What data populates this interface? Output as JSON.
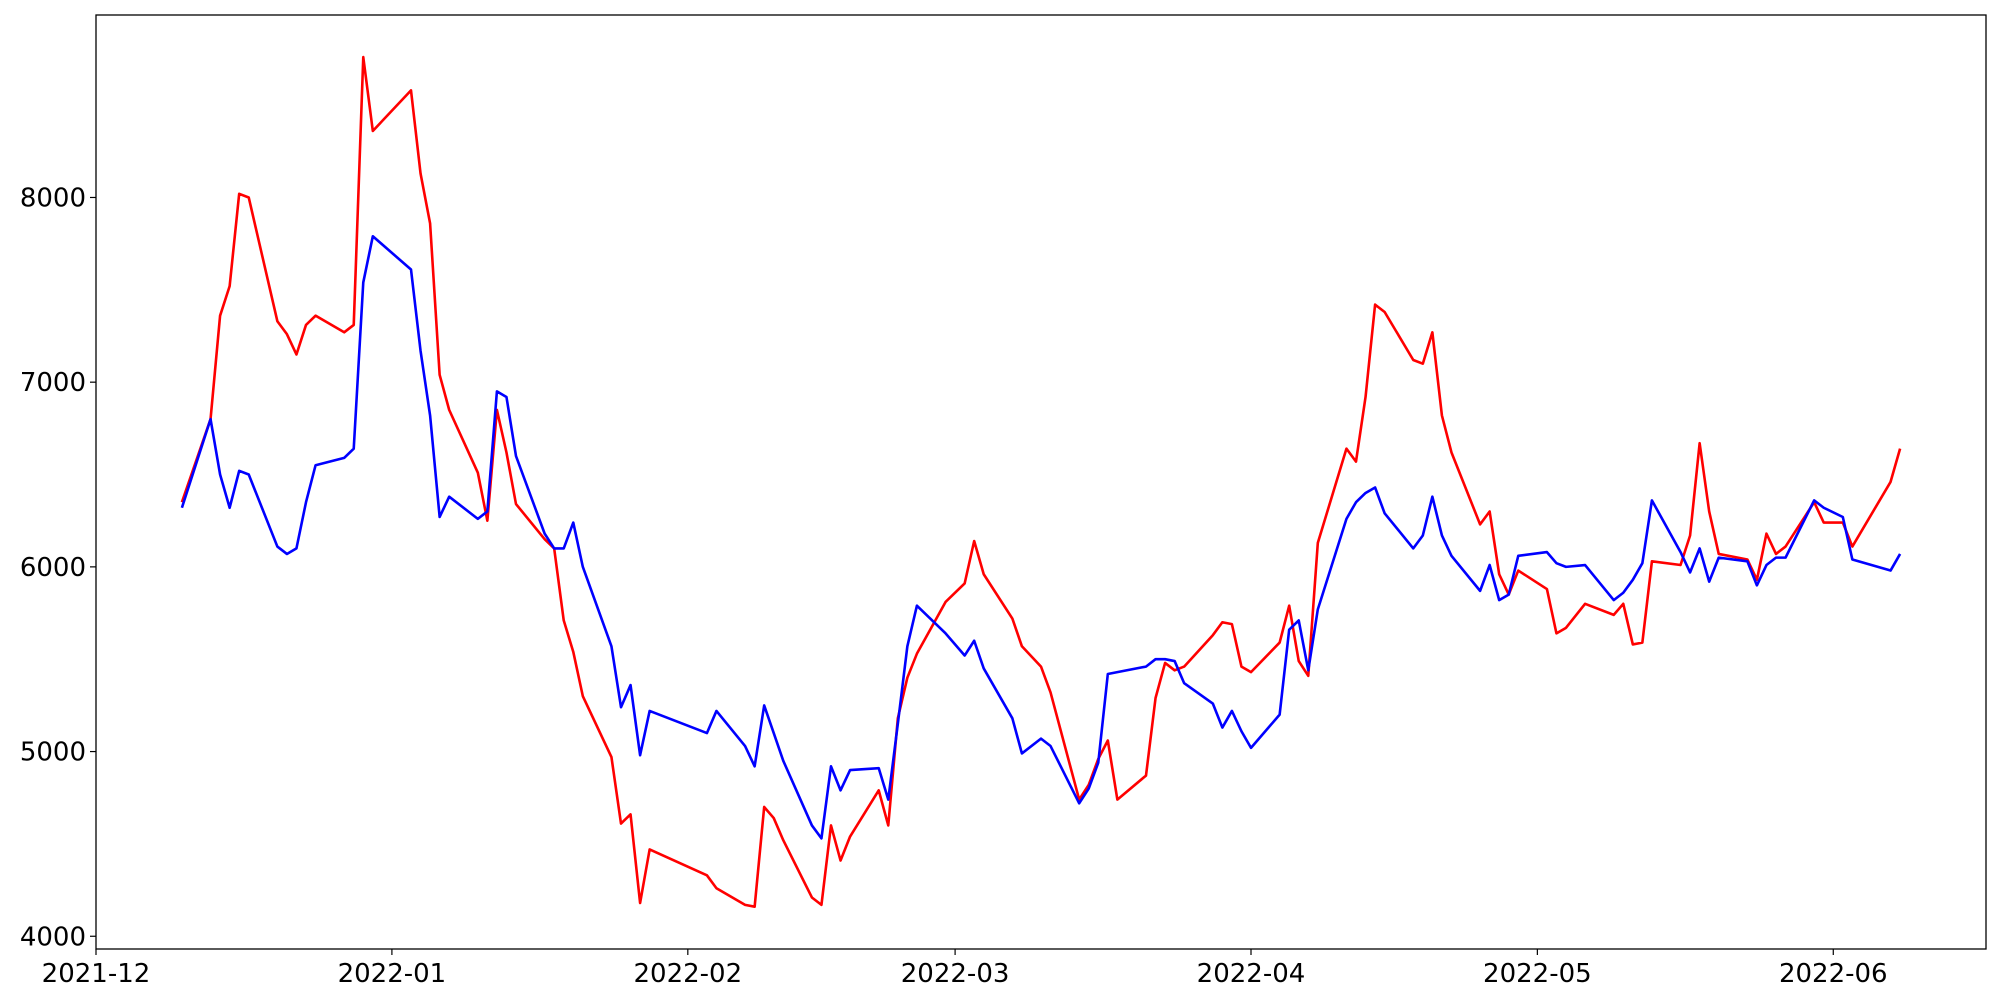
{
  "chart_data": {
    "type": "line",
    "x": [
      "2021-12-10",
      "2021-12-13",
      "2021-12-14",
      "2021-12-15",
      "2021-12-16",
      "2021-12-17",
      "2021-12-20",
      "2021-12-21",
      "2021-12-22",
      "2021-12-23",
      "2021-12-24",
      "2021-12-27",
      "2021-12-28",
      "2021-12-29",
      "2021-12-30",
      "2022-01-03",
      "2022-01-04",
      "2022-01-05",
      "2022-01-06",
      "2022-01-07",
      "2022-01-10",
      "2022-01-11",
      "2022-01-12",
      "2022-01-13",
      "2022-01-14",
      "2022-01-17",
      "2022-01-18",
      "2022-01-19",
      "2022-01-20",
      "2022-01-21",
      "2022-01-24",
      "2022-01-25",
      "2022-01-26",
      "2022-01-27",
      "2022-01-28",
      "2022-02-03",
      "2022-02-04",
      "2022-02-07",
      "2022-02-08",
      "2022-02-09",
      "2022-02-10",
      "2022-02-11",
      "2022-02-14",
      "2022-02-15",
      "2022-02-16",
      "2022-02-17",
      "2022-02-18",
      "2022-02-21",
      "2022-02-22",
      "2022-02-23",
      "2022-02-24",
      "2022-02-25",
      "2022-02-28",
      "2022-03-02",
      "2022-03-03",
      "2022-03-04",
      "2022-03-07",
      "2022-03-08",
      "2022-03-10",
      "2022-03-11",
      "2022-03-14",
      "2022-03-15",
      "2022-03-16",
      "2022-03-17",
      "2022-03-18",
      "2022-03-21",
      "2022-03-22",
      "2022-03-23",
      "2022-03-24",
      "2022-03-25",
      "2022-03-28",
      "2022-03-29",
      "2022-03-30",
      "2022-03-31",
      "2022-04-01",
      "2022-04-04",
      "2022-04-05",
      "2022-04-06",
      "2022-04-07",
      "2022-04-08",
      "2022-04-11",
      "2022-04-12",
      "2022-04-13",
      "2022-04-14",
      "2022-04-15",
      "2022-04-18",
      "2022-04-19",
      "2022-04-20",
      "2022-04-21",
      "2022-04-22",
      "2022-04-25",
      "2022-04-26",
      "2022-04-27",
      "2022-04-28",
      "2022-04-29",
      "2022-05-02",
      "2022-05-03",
      "2022-05-04",
      "2022-05-06",
      "2022-05-09",
      "2022-05-10",
      "2022-05-11",
      "2022-05-12",
      "2022-05-13",
      "2022-05-16",
      "2022-05-17",
      "2022-05-18",
      "2022-05-19",
      "2022-05-20",
      "2022-05-23",
      "2022-05-24",
      "2022-05-25",
      "2022-05-26",
      "2022-05-27",
      "2022-05-30",
      "2022-05-31",
      "2022-06-02",
      "2022-06-03",
      "2022-06-07",
      "2022-06-08"
    ],
    "series": [
      {
        "color": "#ff0000",
        "values": [
          6350,
          6800,
          7360,
          7520,
          8020,
          8000,
          7330,
          7260,
          7150,
          7310,
          7360,
          7270,
          7310,
          8760,
          8360,
          8580,
          8130,
          7860,
          7040,
          6850,
          6510,
          6250,
          6850,
          6620,
          6340,
          6150,
          6100,
          5710,
          5540,
          5300,
          4970,
          4610,
          4660,
          4180,
          4470,
          4330,
          4260,
          4170,
          4160,
          4700,
          4640,
          4520,
          4210,
          4170,
          4600,
          4410,
          4540,
          4790,
          4600,
          5180,
          5400,
          5530,
          5810,
          5910,
          6140,
          5960,
          5720,
          5570,
          5460,
          5320,
          4740,
          4820,
          4960,
          5060,
          4740,
          4870,
          5290,
          5480,
          5440,
          5460,
          5630,
          5700,
          5690,
          5460,
          5430,
          5590,
          5790,
          5490,
          5410,
          6130,
          6640,
          6570,
          6920,
          7420,
          7380,
          7120,
          7100,
          7270,
          6820,
          6620,
          6230,
          6300,
          5960,
          5850,
          5980,
          5880,
          5640,
          5670,
          5800,
          5740,
          5800,
          5580,
          5590,
          6030,
          6010,
          6170,
          6670,
          6300,
          6070,
          6040,
          5930,
          6180,
          6070,
          6110,
          6350,
          6240,
          6240,
          6110,
          6460,
          6640
        ]
      },
      {
        "color": "#0000ff",
        "values": [
          6320,
          6800,
          6500,
          6320,
          6520,
          6500,
          6110,
          6070,
          6100,
          6350,
          6550,
          6590,
          6640,
          7540,
          7790,
          7610,
          7170,
          6820,
          6270,
          6380,
          6260,
          6300,
          6950,
          6920,
          6600,
          6180,
          6100,
          6100,
          6240,
          6000,
          5570,
          5240,
          5360,
          4980,
          5220,
          5100,
          5220,
          5030,
          4920,
          5250,
          5100,
          4950,
          4600,
          4530,
          4920,
          4790,
          4900,
          4910,
          4740,
          5150,
          5570,
          5790,
          5640,
          5520,
          5600,
          5450,
          5180,
          4990,
          5070,
          5030,
          4720,
          4800,
          4940,
          5420,
          5430,
          5460,
          5500,
          5500,
          5490,
          5370,
          5260,
          5130,
          5220,
          5110,
          5020,
          5200,
          5660,
          5710,
          5440,
          5770,
          6260,
          6350,
          6400,
          6430,
          6290,
          6100,
          6170,
          6380,
          6170,
          6060,
          5870,
          6010,
          5820,
          5850,
          6060,
          6080,
          6020,
          6000,
          6010,
          5820,
          5860,
          5930,
          6020,
          6360,
          6080,
          5970,
          6100,
          5920,
          6050,
          6030,
          5900,
          6010,
          6050,
          6050,
          6360,
          6320,
          6270,
          6040,
          5980,
          6070
        ]
      }
    ],
    "xlim": [
      "2021-12-01",
      "2022-06-17"
    ],
    "xticks": [
      "2021-12",
      "2022-01",
      "2022-02",
      "2022-03",
      "2022-04",
      "2022-05",
      "2022-06"
    ],
    "ylim": [
      3931,
      8988
    ],
    "yticks": [
      4000,
      5000,
      6000,
      7000,
      8000
    ],
    "grid": false
  }
}
